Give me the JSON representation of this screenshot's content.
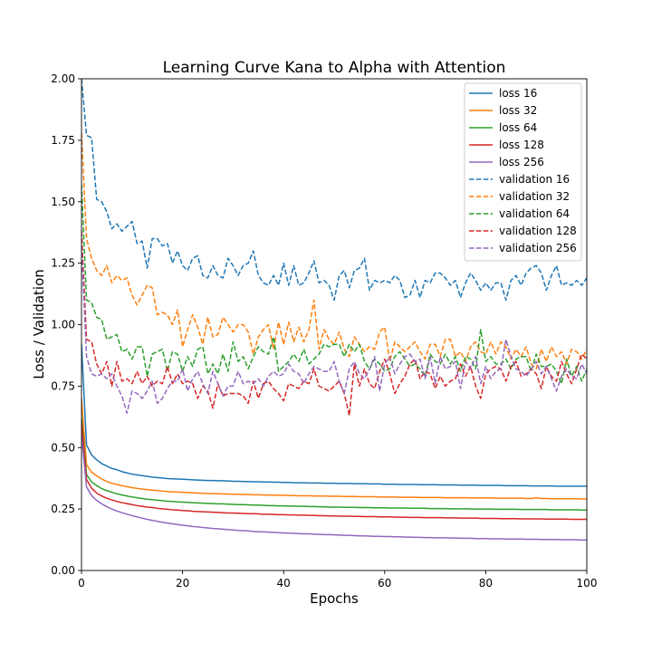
{
  "chart_data": {
    "type": "line",
    "title": "Learning Curve Kana to Alpha with Attention",
    "xlabel": "Epochs",
    "ylabel": "Loss / Validation",
    "xlim": [
      0,
      100
    ],
    "ylim": [
      0,
      2.0
    ],
    "xticks": [
      "0",
      "20",
      "40",
      "60",
      "80",
      "100"
    ],
    "yticks": [
      "0.00",
      "0.25",
      "0.50",
      "0.75",
      "1.00",
      "1.25",
      "1.50",
      "1.75",
      "2.00"
    ],
    "grid": false,
    "legend_position": "top-right",
    "x": [
      0,
      1,
      2,
      3,
      4,
      5,
      6,
      7,
      8,
      9,
      10,
      11,
      12,
      13,
      14,
      15,
      16,
      17,
      18,
      19,
      20,
      21,
      22,
      23,
      24,
      25,
      26,
      27,
      28,
      29,
      30,
      31,
      32,
      33,
      34,
      35,
      36,
      37,
      38,
      39,
      40,
      41,
      42,
      43,
      44,
      45,
      46,
      47,
      48,
      49,
      50,
      51,
      52,
      53,
      54,
      55,
      56,
      57,
      58,
      59,
      60,
      61,
      62,
      63,
      64,
      65,
      66,
      67,
      68,
      69,
      70,
      71,
      72,
      73,
      74,
      75,
      76,
      77,
      78,
      79,
      80,
      81,
      82,
      83,
      84,
      85,
      86,
      87,
      88,
      89,
      90,
      91,
      92,
      93,
      94,
      95,
      96,
      97,
      98,
      99,
      100
    ],
    "series": [
      {
        "name": "loss 16",
        "color": "#1f77b4",
        "dash": false,
        "values": [
          0.92,
          0.51,
          0.47,
          0.45,
          0.435,
          0.425,
          0.415,
          0.41,
          0.402,
          0.397,
          0.392,
          0.389,
          0.386,
          0.383,
          0.38,
          0.378,
          0.376,
          0.374,
          0.373,
          0.372,
          0.371,
          0.37,
          0.369,
          0.368,
          0.367,
          0.366,
          0.366,
          0.365,
          0.365,
          0.364,
          0.363,
          0.363,
          0.362,
          0.362,
          0.361,
          0.361,
          0.36,
          0.36,
          0.359,
          0.359,
          0.358,
          0.358,
          0.357,
          0.357,
          0.357,
          0.356,
          0.356,
          0.356,
          0.355,
          0.355,
          0.355,
          0.354,
          0.354,
          0.354,
          0.353,
          0.353,
          0.353,
          0.352,
          0.352,
          0.352,
          0.351,
          0.351,
          0.351,
          0.35,
          0.35,
          0.35,
          0.35,
          0.349,
          0.349,
          0.349,
          0.349,
          0.348,
          0.348,
          0.348,
          0.348,
          0.347,
          0.347,
          0.347,
          0.347,
          0.346,
          0.346,
          0.346,
          0.346,
          0.346,
          0.345,
          0.345,
          0.345,
          0.345,
          0.345,
          0.344,
          0.344,
          0.344,
          0.344,
          0.344,
          0.343,
          0.343,
          0.343,
          0.343,
          0.343,
          0.343,
          0.343
        ]
      },
      {
        "name": "loss 32",
        "color": "#ff7f0e",
        "dash": false,
        "values": [
          0.7,
          0.43,
          0.4,
          0.385,
          0.372,
          0.362,
          0.355,
          0.35,
          0.345,
          0.341,
          0.337,
          0.334,
          0.331,
          0.329,
          0.327,
          0.325,
          0.323,
          0.321,
          0.32,
          0.319,
          0.318,
          0.317,
          0.316,
          0.315,
          0.314,
          0.313,
          0.313,
          0.312,
          0.311,
          0.311,
          0.31,
          0.31,
          0.309,
          0.309,
          0.308,
          0.308,
          0.307,
          0.307,
          0.306,
          0.306,
          0.306,
          0.305,
          0.305,
          0.304,
          0.304,
          0.304,
          0.303,
          0.303,
          0.303,
          0.302,
          0.302,
          0.302,
          0.301,
          0.301,
          0.301,
          0.3,
          0.3,
          0.3,
          0.3,
          0.299,
          0.299,
          0.299,
          0.299,
          0.298,
          0.298,
          0.298,
          0.298,
          0.297,
          0.297,
          0.297,
          0.297,
          0.297,
          0.296,
          0.296,
          0.296,
          0.296,
          0.296,
          0.295,
          0.295,
          0.295,
          0.295,
          0.295,
          0.294,
          0.294,
          0.294,
          0.294,
          0.294,
          0.294,
          0.293,
          0.293,
          0.296,
          0.293,
          0.293,
          0.292,
          0.292,
          0.292,
          0.292,
          0.292,
          0.292,
          0.291,
          0.291
        ]
      },
      {
        "name": "loss 64",
        "color": "#2ca02c",
        "dash": false,
        "values": [
          0.62,
          0.39,
          0.36,
          0.345,
          0.333,
          0.325,
          0.318,
          0.312,
          0.307,
          0.303,
          0.299,
          0.296,
          0.293,
          0.29,
          0.288,
          0.286,
          0.284,
          0.282,
          0.281,
          0.279,
          0.278,
          0.277,
          0.276,
          0.275,
          0.274,
          0.273,
          0.272,
          0.271,
          0.271,
          0.27,
          0.269,
          0.268,
          0.268,
          0.267,
          0.266,
          0.266,
          0.265,
          0.264,
          0.264,
          0.263,
          0.263,
          0.262,
          0.262,
          0.261,
          0.261,
          0.26,
          0.26,
          0.259,
          0.259,
          0.258,
          0.258,
          0.258,
          0.257,
          0.257,
          0.257,
          0.256,
          0.256,
          0.256,
          0.255,
          0.255,
          0.255,
          0.254,
          0.254,
          0.254,
          0.254,
          0.253,
          0.253,
          0.253,
          0.253,
          0.252,
          0.252,
          0.252,
          0.252,
          0.251,
          0.251,
          0.251,
          0.251,
          0.25,
          0.25,
          0.25,
          0.25,
          0.25,
          0.249,
          0.249,
          0.249,
          0.249,
          0.249,
          0.248,
          0.248,
          0.248,
          0.248,
          0.248,
          0.248,
          0.247,
          0.247,
          0.247,
          0.247,
          0.247,
          0.247,
          0.246,
          0.246
        ]
      },
      {
        "name": "loss 128",
        "color": "#d62728",
        "dash": false,
        "values": [
          0.6,
          0.37,
          0.335,
          0.315,
          0.303,
          0.294,
          0.287,
          0.281,
          0.276,
          0.272,
          0.268,
          0.264,
          0.261,
          0.258,
          0.256,
          0.253,
          0.251,
          0.249,
          0.247,
          0.246,
          0.244,
          0.243,
          0.241,
          0.24,
          0.239,
          0.238,
          0.237,
          0.236,
          0.235,
          0.234,
          0.234,
          0.233,
          0.232,
          0.231,
          0.231,
          0.23,
          0.229,
          0.229,
          0.228,
          0.227,
          0.227,
          0.226,
          0.226,
          0.225,
          0.225,
          0.224,
          0.224,
          0.223,
          0.223,
          0.222,
          0.222,
          0.221,
          0.221,
          0.221,
          0.22,
          0.22,
          0.219,
          0.219,
          0.219,
          0.218,
          0.218,
          0.218,
          0.217,
          0.217,
          0.217,
          0.216,
          0.216,
          0.216,
          0.215,
          0.215,
          0.215,
          0.215,
          0.214,
          0.214,
          0.214,
          0.213,
          0.213,
          0.213,
          0.213,
          0.212,
          0.212,
          0.212,
          0.212,
          0.211,
          0.211,
          0.211,
          0.211,
          0.21,
          0.21,
          0.21,
          0.21,
          0.21,
          0.209,
          0.209,
          0.209,
          0.209,
          0.209,
          0.208,
          0.208,
          0.208,
          0.208
        ]
      },
      {
        "name": "loss 256",
        "color": "#9467bd",
        "dash": false,
        "values": [
          0.55,
          0.34,
          0.305,
          0.285,
          0.271,
          0.26,
          0.25,
          0.242,
          0.235,
          0.229,
          0.223,
          0.218,
          0.213,
          0.208,
          0.204,
          0.2,
          0.196,
          0.193,
          0.19,
          0.187,
          0.184,
          0.182,
          0.179,
          0.177,
          0.175,
          0.173,
          0.171,
          0.17,
          0.168,
          0.166,
          0.165,
          0.163,
          0.162,
          0.161,
          0.159,
          0.158,
          0.157,
          0.156,
          0.155,
          0.154,
          0.153,
          0.152,
          0.151,
          0.15,
          0.149,
          0.149,
          0.148,
          0.147,
          0.146,
          0.146,
          0.145,
          0.144,
          0.143,
          0.143,
          0.142,
          0.141,
          0.141,
          0.14,
          0.139,
          0.139,
          0.138,
          0.138,
          0.137,
          0.137,
          0.136,
          0.136,
          0.135,
          0.135,
          0.134,
          0.134,
          0.133,
          0.133,
          0.133,
          0.132,
          0.132,
          0.131,
          0.131,
          0.131,
          0.13,
          0.13,
          0.13,
          0.129,
          0.129,
          0.129,
          0.128,
          0.128,
          0.128,
          0.128,
          0.127,
          0.127,
          0.127,
          0.126,
          0.126,
          0.126,
          0.126,
          0.125,
          0.125,
          0.125,
          0.125,
          0.124,
          0.124
        ]
      },
      {
        "name": "validation 16",
        "color": "#1f77b4",
        "dash": true,
        "values": [
          2.0,
          1.77,
          1.76,
          1.51,
          1.5,
          1.46,
          1.39,
          1.41,
          1.38,
          1.4,
          1.42,
          1.33,
          1.34,
          1.23,
          1.35,
          1.35,
          1.32,
          1.33,
          1.25,
          1.3,
          1.24,
          1.22,
          1.27,
          1.28,
          1.2,
          1.19,
          1.24,
          1.2,
          1.19,
          1.27,
          1.24,
          1.2,
          1.24,
          1.25,
          1.3,
          1.2,
          1.17,
          1.16,
          1.2,
          1.16,
          1.25,
          1.16,
          1.24,
          1.16,
          1.17,
          1.21,
          1.26,
          1.17,
          1.18,
          1.16,
          1.1,
          1.2,
          1.22,
          1.15,
          1.22,
          1.23,
          1.27,
          1.14,
          1.18,
          1.17,
          1.18,
          1.17,
          1.2,
          1.18,
          1.11,
          1.12,
          1.18,
          1.11,
          1.18,
          1.17,
          1.21,
          1.21,
          1.19,
          1.16,
          1.18,
          1.11,
          1.17,
          1.21,
          1.18,
          1.14,
          1.17,
          1.14,
          1.17,
          1.17,
          1.1,
          1.18,
          1.2,
          1.16,
          1.21,
          1.23,
          1.24,
          1.21,
          1.14,
          1.2,
          1.24,
          1.16,
          1.17,
          1.16,
          1.18,
          1.16,
          1.19
        ]
      },
      {
        "name": "validation 32",
        "color": "#ff7f0e",
        "dash": true,
        "values": [
          1.78,
          1.35,
          1.27,
          1.22,
          1.2,
          1.24,
          1.17,
          1.2,
          1.18,
          1.19,
          1.12,
          1.08,
          1.12,
          1.16,
          1.15,
          1.04,
          1.05,
          1.04,
          1.0,
          1.06,
          0.91,
          0.98,
          1.04,
          0.99,
          0.92,
          1.03,
          0.95,
          0.96,
          1.03,
          1.0,
          0.97,
          1.0,
          1.0,
          0.97,
          0.88,
          0.95,
          0.98,
          1.0,
          0.9,
          1.01,
          0.92,
          1.01,
          0.93,
          0.99,
          0.93,
          0.98,
          1.1,
          0.9,
          0.98,
          0.94,
          0.92,
          0.97,
          0.9,
          0.87,
          0.95,
          0.92,
          0.89,
          0.91,
          0.9,
          0.97,
          0.99,
          0.85,
          0.93,
          0.91,
          0.89,
          0.91,
          0.93,
          0.89,
          0.86,
          0.92,
          0.92,
          0.87,
          0.94,
          0.94,
          0.87,
          0.89,
          0.85,
          0.91,
          0.93,
          0.89,
          0.88,
          0.93,
          0.88,
          0.93,
          0.91,
          0.86,
          0.9,
          0.87,
          0.91,
          0.84,
          0.82,
          0.9,
          0.85,
          0.91,
          0.87,
          0.89,
          0.84,
          0.9,
          0.89,
          0.86,
          0.9
        ]
      },
      {
        "name": "validation 64",
        "color": "#2ca02c",
        "dash": true,
        "values": [
          1.57,
          1.1,
          1.09,
          1.03,
          1.02,
          0.94,
          0.95,
          0.96,
          0.89,
          0.9,
          0.86,
          0.91,
          0.91,
          0.79,
          0.88,
          0.89,
          0.9,
          0.81,
          0.89,
          0.88,
          0.81,
          0.87,
          0.83,
          0.9,
          0.91,
          0.8,
          0.84,
          0.8,
          0.88,
          0.81,
          0.93,
          0.85,
          0.87,
          0.82,
          0.87,
          0.91,
          0.89,
          0.88,
          0.95,
          0.81,
          0.83,
          0.85,
          0.88,
          0.85,
          0.9,
          0.84,
          0.86,
          0.88,
          0.92,
          0.91,
          0.92,
          0.92,
          0.87,
          0.92,
          0.89,
          0.92,
          0.85,
          0.82,
          0.86,
          0.84,
          0.81,
          0.82,
          0.87,
          0.89,
          0.86,
          0.83,
          0.84,
          0.82,
          0.79,
          0.88,
          0.85,
          0.84,
          0.88,
          0.84,
          0.87,
          0.81,
          0.87,
          0.86,
          0.82,
          0.98,
          0.85,
          0.87,
          0.84,
          0.84,
          0.86,
          0.82,
          0.86,
          0.87,
          0.87,
          0.81,
          0.88,
          0.83,
          0.83,
          0.84,
          0.81,
          0.76,
          0.86,
          0.79,
          0.83,
          0.77,
          0.82
        ]
      },
      {
        "name": "validation 128",
        "color": "#d62728",
        "dash": true,
        "values": [
          1.38,
          0.94,
          0.93,
          0.84,
          0.8,
          0.85,
          0.75,
          0.85,
          0.77,
          0.78,
          0.76,
          0.81,
          0.76,
          0.79,
          0.75,
          0.77,
          0.76,
          0.83,
          0.76,
          0.8,
          0.76,
          0.77,
          0.76,
          0.7,
          0.75,
          0.73,
          0.66,
          0.76,
          0.71,
          0.72,
          0.72,
          0.72,
          0.71,
          0.68,
          0.77,
          0.7,
          0.76,
          0.77,
          0.74,
          0.72,
          0.69,
          0.76,
          0.75,
          0.74,
          0.77,
          0.76,
          0.82,
          0.75,
          0.74,
          0.73,
          0.75,
          0.77,
          0.72,
          0.63,
          0.84,
          0.75,
          0.82,
          0.76,
          0.74,
          0.81,
          0.86,
          0.8,
          0.72,
          0.76,
          0.79,
          0.84,
          0.86,
          0.78,
          0.81,
          0.8,
          0.74,
          0.79,
          0.75,
          0.77,
          0.78,
          0.84,
          0.79,
          0.83,
          0.75,
          0.7,
          0.8,
          0.82,
          0.83,
          0.82,
          0.77,
          0.83,
          0.85,
          0.79,
          0.8,
          0.82,
          0.8,
          0.74,
          0.83,
          0.79,
          0.77,
          0.85,
          0.8,
          0.76,
          0.82,
          0.88,
          0.86
        ]
      },
      {
        "name": "validation 256",
        "color": "#9467bd",
        "dash": true,
        "values": [
          1.32,
          0.87,
          0.8,
          0.79,
          0.8,
          0.78,
          0.8,
          0.75,
          0.71,
          0.64,
          0.73,
          0.72,
          0.7,
          0.73,
          0.77,
          0.68,
          0.7,
          0.74,
          0.77,
          0.77,
          0.82,
          0.73,
          0.78,
          0.81,
          0.76,
          0.72,
          0.81,
          0.76,
          0.71,
          0.75,
          0.75,
          0.81,
          0.76,
          0.77,
          0.76,
          0.78,
          0.75,
          0.79,
          0.81,
          0.79,
          0.8,
          0.84,
          0.81,
          0.8,
          0.76,
          0.8,
          0.83,
          0.82,
          0.81,
          0.81,
          0.85,
          0.77,
          0.72,
          0.82,
          0.85,
          0.8,
          0.78,
          0.82,
          0.87,
          0.73,
          0.84,
          0.87,
          0.8,
          0.84,
          0.87,
          0.88,
          0.85,
          0.86,
          0.78,
          0.87,
          0.76,
          0.87,
          0.82,
          0.83,
          0.85,
          0.74,
          0.85,
          0.82,
          0.87,
          0.76,
          0.83,
          0.78,
          0.81,
          0.82,
          0.94,
          0.87,
          0.82,
          0.81,
          0.79,
          0.82,
          0.85,
          0.8,
          0.83,
          0.78,
          0.73,
          0.79,
          0.82,
          0.79,
          0.78,
          0.84,
          0.8
        ]
      }
    ]
  }
}
